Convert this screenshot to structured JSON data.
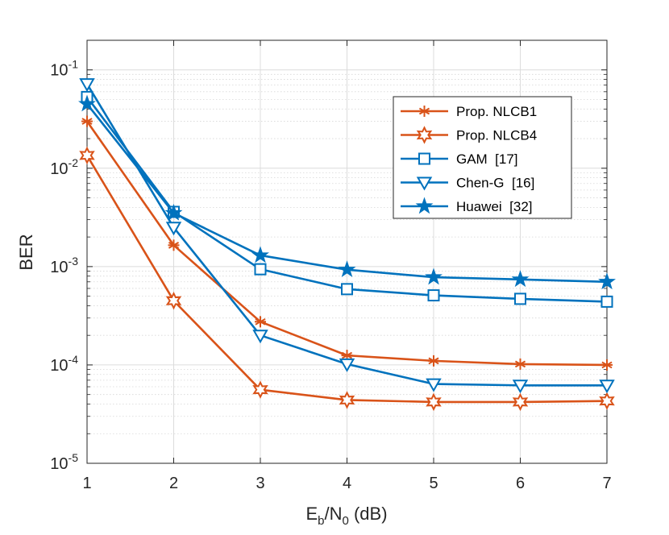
{
  "chart_data": {
    "type": "line",
    "title": "",
    "xlabel": {
      "base": "E",
      "sub1": "b",
      "mid": "/N",
      "sub2": "0",
      "tail": " (dB)"
    },
    "ylabel": "BER",
    "y_scale": "log",
    "xlim": [
      1,
      7
    ],
    "ylim": [
      1e-05,
      0.2
    ],
    "x": [
      1,
      2,
      3,
      4,
      5,
      6,
      7
    ],
    "x_tick_labels": [
      "1",
      "2",
      "3",
      "4",
      "5",
      "6",
      "7"
    ],
    "y_ticks": [
      {
        "base": "10",
        "exp": "-5",
        "value": 1e-05
      },
      {
        "base": "10",
        "exp": "-4",
        "value": 0.0001
      },
      {
        "base": "10",
        "exp": "-3",
        "value": 0.001
      },
      {
        "base": "10",
        "exp": "-2",
        "value": 0.01
      },
      {
        "base": "10",
        "exp": "-1",
        "value": 0.1
      }
    ],
    "grid": true,
    "minor_grid": true,
    "legend_position": "top-right",
    "series": [
      {
        "name": "Prop. NLCB1",
        "color": "#D95319",
        "marker": "asterisk",
        "values": [
          0.03,
          0.00165,
          0.000275,
          0.000125,
          0.00011,
          0.000102,
          0.0001
        ]
      },
      {
        "name": "Prop. NLCB4",
        "color": "#D95319",
        "marker": "hexagram",
        "values": [
          0.0135,
          0.00045,
          5.6e-05,
          4.4e-05,
          4.2e-05,
          4.2e-05,
          4.3e-05
        ]
      },
      {
        "name": "GAM  [17]",
        "color": "#0072BD",
        "marker": "square",
        "values": [
          0.053,
          0.0036,
          0.00094,
          0.00059,
          0.00051,
          0.00047,
          0.00044
        ]
      },
      {
        "name": "Chen-G  [16]",
        "color": "#0072BD",
        "marker": "triangle-down",
        "values": [
          0.072,
          0.0025,
          0.0002,
          0.000102,
          6.4e-05,
          6.2e-05,
          6.2e-05
        ]
      },
      {
        "name": "Huawei  [32]",
        "color": "#0072BD",
        "marker": "pentagram",
        "values": [
          0.045,
          0.0035,
          0.0013,
          0.00093,
          0.00078,
          0.00074,
          0.0007
        ]
      }
    ]
  }
}
